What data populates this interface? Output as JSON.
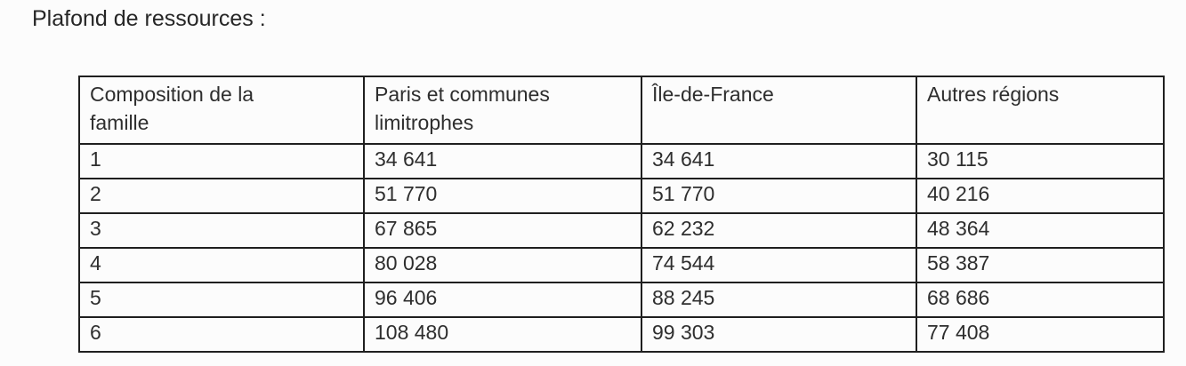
{
  "page": {
    "title": "Plafond de ressources :"
  },
  "table": {
    "headers": [
      "Composition de la famille",
      "Paris et communes limitrophes",
      "Île-de-France",
      "Autres régions"
    ],
    "rows": [
      [
        "1",
        "34 641",
        "34 641",
        "30 115"
      ],
      [
        "2",
        "51 770",
        "51 770",
        "40 216"
      ],
      [
        "3",
        "67 865",
        "62 232",
        "48 364"
      ],
      [
        "4",
        "80 028",
        "74 544",
        "58 387"
      ],
      [
        "5",
        "96 406",
        "88 245",
        "68 686"
      ],
      [
        "6",
        "108 480",
        "99 303",
        "77 408"
      ]
    ]
  },
  "colors": {
    "text": "#2e2e2e",
    "border": "#1f1f1f",
    "background": "#fcfcfc"
  }
}
